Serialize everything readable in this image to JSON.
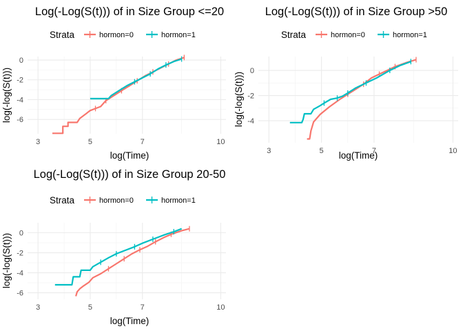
{
  "legend": {
    "title": "Strata",
    "entries": [
      {
        "label": "hormon=0",
        "color": "#F8766D"
      },
      {
        "label": "hormon=1",
        "color": "#00BFC4"
      }
    ]
  },
  "chart_data": [
    {
      "type": "line",
      "title": "Log(-Log(S(t))) of in Size Group <=20",
      "xlabel": "log(Time)",
      "ylabel": "log(-log(S(t)))",
      "xlim": [
        2.6,
        10.2
      ],
      "ylim": [
        -7.45,
        0.35
      ],
      "xticks": [
        3,
        5,
        7,
        10
      ],
      "yticks": [
        0,
        -2,
        -4,
        -6
      ],
      "grid": true,
      "legend_position": "top",
      "series": [
        {
          "name": "hormon=0",
          "color": "#F8766D",
          "points": [
            [
              3.55,
              -7.4
            ],
            [
              3.95,
              -7.4
            ],
            [
              3.95,
              -6.7
            ],
            [
              4.15,
              -6.7
            ],
            [
              4.15,
              -6.3
            ],
            [
              4.5,
              -6.3
            ],
            [
              4.6,
              -5.9
            ],
            [
              4.85,
              -5.4
            ],
            [
              5.0,
              -5.1
            ],
            [
              5.2,
              -4.9
            ],
            [
              5.4,
              -4.7
            ],
            [
              5.6,
              -4.1
            ],
            [
              5.9,
              -3.6
            ],
            [
              6.2,
              -3.1
            ],
            [
              6.5,
              -2.6
            ],
            [
              6.8,
              -2.1
            ],
            [
              7.1,
              -1.6
            ],
            [
              7.4,
              -1.2
            ],
            [
              7.7,
              -0.8
            ],
            [
              8.0,
              -0.4
            ],
            [
              8.3,
              0.0
            ],
            [
              8.6,
              0.25
            ]
          ]
        },
        {
          "name": "hormon=1",
          "color": "#00BFC4",
          "points": [
            [
              5.0,
              -3.9
            ],
            [
              5.7,
              -3.9
            ],
            [
              5.8,
              -3.6
            ],
            [
              6.1,
              -3.1
            ],
            [
              6.4,
              -2.6
            ],
            [
              6.7,
              -2.2
            ],
            [
              7.0,
              -1.8
            ],
            [
              7.3,
              -1.4
            ],
            [
              7.6,
              -0.9
            ],
            [
              7.9,
              -0.5
            ],
            [
              8.2,
              -0.15
            ],
            [
              8.5,
              0.1
            ]
          ]
        }
      ]
    },
    {
      "type": "line",
      "title": "Log(-Log(S(t))) of in Size Group >50",
      "xlabel": "log(Time)",
      "ylabel": "log(-log(S(t)))",
      "xlim": [
        2.6,
        10.2
      ],
      "ylim": [
        -5.75,
        1.1
      ],
      "xticks": [
        3,
        5,
        7,
        10
      ],
      "yticks": [
        0,
        -2,
        -4
      ],
      "grid": true,
      "legend_position": "top",
      "series": [
        {
          "name": "hormon=0",
          "color": "#F8766D",
          "points": [
            [
              4.45,
              -5.45
            ],
            [
              4.55,
              -5.45
            ],
            [
              4.6,
              -4.8
            ],
            [
              4.7,
              -4.1
            ],
            [
              4.95,
              -3.5
            ],
            [
              5.3,
              -2.9
            ],
            [
              5.7,
              -2.3
            ],
            [
              6.0,
              -1.9
            ],
            [
              6.3,
              -1.5
            ],
            [
              6.6,
              -1.1
            ],
            [
              6.9,
              -0.6
            ],
            [
              7.2,
              -0.3
            ],
            [
              7.5,
              0.0
            ],
            [
              7.8,
              0.3
            ],
            [
              8.2,
              0.6
            ],
            [
              8.6,
              0.85
            ]
          ]
        },
        {
          "name": "hormon=1",
          "color": "#00BFC4",
          "points": [
            [
              3.8,
              -4.15
            ],
            [
              4.25,
              -4.15
            ],
            [
              4.3,
              -3.9
            ],
            [
              4.35,
              -3.45
            ],
            [
              4.6,
              -3.45
            ],
            [
              4.7,
              -3.1
            ],
            [
              4.95,
              -2.8
            ],
            [
              5.1,
              -2.6
            ],
            [
              5.35,
              -2.3
            ],
            [
              5.6,
              -2.2
            ],
            [
              5.8,
              -2.05
            ],
            [
              6.0,
              -1.8
            ],
            [
              6.3,
              -1.4
            ],
            [
              6.7,
              -1.0
            ],
            [
              7.1,
              -0.6
            ],
            [
              7.6,
              0.0
            ],
            [
              8.0,
              0.4
            ],
            [
              8.4,
              0.7
            ]
          ]
        }
      ]
    },
    {
      "type": "line",
      "title": "Log(-Log(S(t))) of in Size Group 20-50",
      "xlabel": "log(Time)",
      "ylabel": "log(-log(S(t)))",
      "xlim": [
        2.6,
        10.2
      ],
      "ylim": [
        -6.65,
        1.0
      ],
      "xticks": [
        3,
        5,
        7,
        10
      ],
      "yticks": [
        0,
        -2,
        -4,
        -6
      ],
      "grid": true,
      "legend_position": "top",
      "series": [
        {
          "name": "hormon=0",
          "color": "#F8766D",
          "points": [
            [
              4.45,
              -6.35
            ],
            [
              4.5,
              -5.9
            ],
            [
              4.6,
              -5.6
            ],
            [
              4.75,
              -5.3
            ],
            [
              4.95,
              -4.95
            ],
            [
              5.1,
              -4.5
            ],
            [
              5.4,
              -4.1
            ],
            [
              5.7,
              -3.6
            ],
            [
              6.0,
              -3.1
            ],
            [
              6.3,
              -2.6
            ],
            [
              6.6,
              -2.1
            ],
            [
              6.9,
              -1.7
            ],
            [
              7.2,
              -1.35
            ],
            [
              7.5,
              -0.9
            ],
            [
              7.8,
              -0.5
            ],
            [
              8.1,
              -0.15
            ],
            [
              8.5,
              0.2
            ],
            [
              8.8,
              0.4
            ]
          ]
        },
        {
          "name": "hormon=1",
          "color": "#00BFC4",
          "points": [
            [
              3.65,
              -5.2
            ],
            [
              4.3,
              -5.2
            ],
            [
              4.35,
              -4.4
            ],
            [
              4.6,
              -4.4
            ],
            [
              4.65,
              -3.75
            ],
            [
              5.0,
              -3.75
            ],
            [
              5.1,
              -3.4
            ],
            [
              5.4,
              -2.95
            ],
            [
              5.7,
              -2.5
            ],
            [
              6.0,
              -2.1
            ],
            [
              6.3,
              -1.8
            ],
            [
              6.7,
              -1.4
            ],
            [
              7.0,
              -1.05
            ],
            [
              7.4,
              -0.65
            ],
            [
              7.8,
              -0.25
            ],
            [
              8.2,
              0.1
            ],
            [
              8.5,
              0.4
            ]
          ]
        }
      ]
    }
  ]
}
